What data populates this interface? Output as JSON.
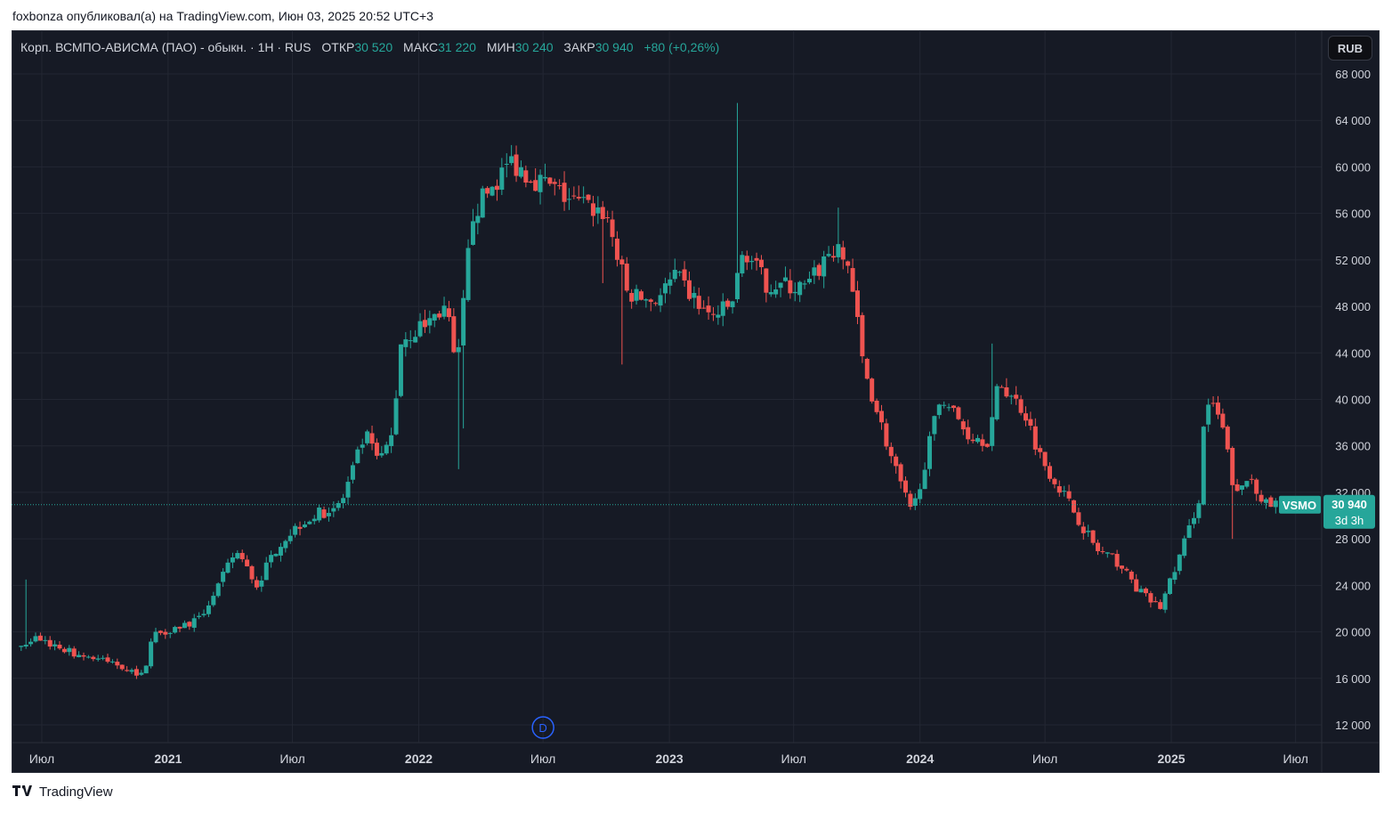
{
  "header": {
    "publisher_line": "foxbonza опубликовал(а) на TradingView.com, Июн 03, 2025 20:52 UTC+3"
  },
  "legend": {
    "symbol_text": "Корп. ВСМПО-АВИСМА (ПАО) - обыкн. · 1Н · RUS",
    "open_label": "ОТКР",
    "open_value": "30 520",
    "high_label": "МАКС",
    "high_value": "31 220",
    "low_label": "МИН",
    "low_value": "30 240",
    "close_label": "ЗАКР",
    "close_value": "30 940",
    "change_text": "+80 (+0,26%)"
  },
  "currency_button": "RUB",
  "price_tag": {
    "ticker": "VSMO",
    "price": "30 940",
    "countdown": "3d 3h"
  },
  "event_marker": "D",
  "footer": {
    "brand": "TradingView"
  },
  "colors": {
    "up": "#26a69a",
    "down": "#ef5350",
    "background": "#161a25",
    "grid": "#232733",
    "axis_text": "#d1d4dc"
  },
  "chart_data": {
    "type": "candlestick",
    "timeframe": "1W",
    "ylim": [
      10000,
      70000
    ],
    "y_ticks": [
      {
        "value": 68000,
        "label": "68 000"
      },
      {
        "value": 64000,
        "label": "64 000"
      },
      {
        "value": 60000,
        "label": "60 000"
      },
      {
        "value": 56000,
        "label": "56 000"
      },
      {
        "value": 52000,
        "label": "52 000"
      },
      {
        "value": 48000,
        "label": "48 000"
      },
      {
        "value": 44000,
        "label": "44 000"
      },
      {
        "value": 40000,
        "label": "40 000"
      },
      {
        "value": 36000,
        "label": "36 000"
      },
      {
        "value": 32000,
        "label": "32 000"
      },
      {
        "value": 28000,
        "label": "28 000"
      },
      {
        "value": 24000,
        "label": "24 000"
      },
      {
        "value": 20000,
        "label": "20 000"
      },
      {
        "value": 16000,
        "label": "16 000"
      },
      {
        "value": 12000,
        "label": "12 000"
      }
    ],
    "x_ticks": [
      {
        "date": "2020-07-01",
        "label": "Июл",
        "bold": false
      },
      {
        "date": "2021-01-01",
        "label": "2021",
        "bold": true
      },
      {
        "date": "2021-07-01",
        "label": "Июл",
        "bold": false
      },
      {
        "date": "2022-01-01",
        "label": "2022",
        "bold": true
      },
      {
        "date": "2022-07-01",
        "label": "Июл",
        "bold": false
      },
      {
        "date": "2023-01-01",
        "label": "2023",
        "bold": true
      },
      {
        "date": "2023-07-01",
        "label": "Июл",
        "bold": false
      },
      {
        "date": "2024-01-01",
        "label": "2024",
        "bold": true
      },
      {
        "date": "2024-07-01",
        "label": "Июл",
        "bold": false
      },
      {
        "date": "2025-01-01",
        "label": "2025",
        "bold": true
      },
      {
        "date": "2025-07-01",
        "label": "Июл",
        "bold": false
      }
    ],
    "last_price": 30940,
    "event_date": "2022-07-01",
    "anchors": [
      {
        "date": "2020-06-01",
        "price": 18800
      },
      {
        "date": "2020-06-22",
        "price": 19500
      },
      {
        "date": "2020-08-15",
        "price": 18200
      },
      {
        "date": "2020-10-20",
        "price": 17200
      },
      {
        "date": "2020-11-25",
        "price": 16200
      },
      {
        "date": "2020-12-10",
        "price": 19800
      },
      {
        "date": "2021-02-15",
        "price": 21000
      },
      {
        "date": "2021-03-20",
        "price": 24500
      },
      {
        "date": "2021-04-10",
        "price": 27000
      },
      {
        "date": "2021-05-10",
        "price": 24000
      },
      {
        "date": "2021-06-10",
        "price": 27500
      },
      {
        "date": "2021-07-15",
        "price": 29500
      },
      {
        "date": "2021-09-10",
        "price": 31000
      },
      {
        "date": "2021-10-15",
        "price": 37000
      },
      {
        "date": "2021-11-05",
        "price": 34500
      },
      {
        "date": "2021-11-25",
        "price": 37200
      },
      {
        "date": "2021-12-05",
        "price": 45000
      },
      {
        "date": "2022-01-10",
        "price": 46500
      },
      {
        "date": "2022-02-10",
        "price": 48000
      },
      {
        "date": "2022-02-25",
        "price": 42000
      },
      {
        "date": "2022-03-20",
        "price": 56000
      },
      {
        "date": "2022-05-15",
        "price": 60500
      },
      {
        "date": "2022-06-20",
        "price": 59000
      },
      {
        "date": "2022-08-15",
        "price": 57000
      },
      {
        "date": "2022-10-01",
        "price": 56000
      },
      {
        "date": "2022-11-01",
        "price": 49000
      },
      {
        "date": "2022-12-10",
        "price": 48500
      },
      {
        "date": "2023-01-10",
        "price": 50500
      },
      {
        "date": "2023-03-01",
        "price": 47000
      },
      {
        "date": "2023-04-01",
        "price": 48000
      },
      {
        "date": "2023-04-20",
        "price": 53000
      },
      {
        "date": "2023-05-20",
        "price": 50000
      },
      {
        "date": "2023-07-20",
        "price": 49500
      },
      {
        "date": "2023-08-25",
        "price": 53000
      },
      {
        "date": "2023-09-20",
        "price": 51500
      },
      {
        "date": "2023-10-10",
        "price": 43000
      },
      {
        "date": "2023-11-20",
        "price": 35000
      },
      {
        "date": "2023-12-20",
        "price": 30000
      },
      {
        "date": "2024-01-10",
        "price": 35000
      },
      {
        "date": "2024-02-01",
        "price": 40500
      },
      {
        "date": "2024-03-10",
        "price": 37000
      },
      {
        "date": "2024-04-10",
        "price": 36500
      },
      {
        "date": "2024-04-25",
        "price": 41500
      },
      {
        "date": "2024-06-01",
        "price": 39000
      },
      {
        "date": "2024-06-25",
        "price": 35000
      },
      {
        "date": "2024-08-01",
        "price": 31500
      },
      {
        "date": "2024-09-15",
        "price": 27000
      },
      {
        "date": "2024-10-15",
        "price": 26000
      },
      {
        "date": "2024-11-15",
        "price": 23500
      },
      {
        "date": "2024-12-15",
        "price": 22000
      },
      {
        "date": "2025-01-10",
        "price": 26000
      },
      {
        "date": "2025-01-25",
        "price": 28500
      },
      {
        "date": "2025-02-10",
        "price": 31500
      },
      {
        "date": "2025-02-20",
        "price": 40000
      },
      {
        "date": "2025-03-15",
        "price": 38000
      },
      {
        "date": "2025-04-05",
        "price": 31500
      },
      {
        "date": "2025-04-25",
        "price": 33500
      },
      {
        "date": "2025-05-20",
        "price": 30800
      },
      {
        "date": "2025-06-03",
        "price": 30940
      }
    ],
    "spikes": [
      {
        "date": "2020-06-08",
        "high": 24500
      },
      {
        "date": "2022-03-01",
        "low": 34000
      },
      {
        "date": "2022-03-08",
        "low": 37500
      },
      {
        "date": "2022-09-25",
        "low": 50000
      },
      {
        "date": "2022-10-25",
        "low": 43000
      },
      {
        "date": "2023-04-10",
        "high": 65500
      },
      {
        "date": "2023-09-01",
        "high": 56500
      },
      {
        "date": "2024-04-18",
        "high": 44800
      },
      {
        "date": "2025-04-01",
        "low": 28000
      }
    ]
  }
}
